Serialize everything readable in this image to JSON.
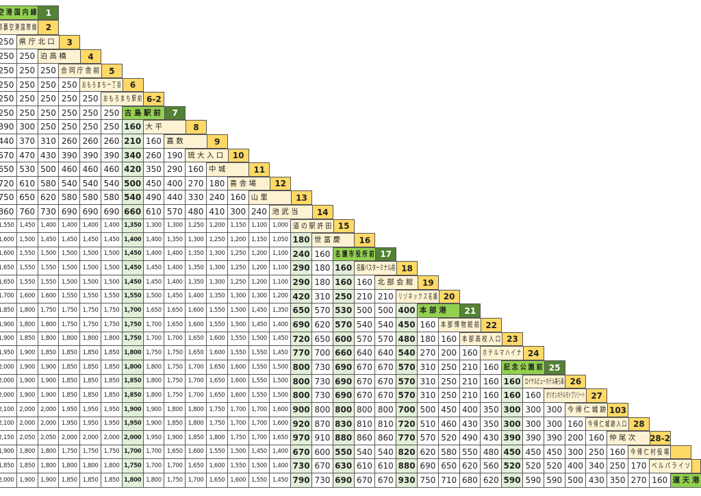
{
  "table_title": "",
  "stops": [
    {
      "name": "空 港 国 内 線",
      "no": "1",
      "type": "g"
    },
    {
      "name": "那 覇 空 港 国 際 線",
      "no": "2",
      "type": "y"
    },
    {
      "name": "県 庁 北 口",
      "no": "3",
      "type": "y"
    },
    {
      "name": "泊 高 橋",
      "no": "4",
      "type": "y"
    },
    {
      "name": "合 同 庁 舎 前",
      "no": "5",
      "type": "y"
    },
    {
      "name": "お も ろ ま ち 一 丁 目",
      "no": "6",
      "type": "y"
    },
    {
      "name": "お も ろ ま ち 駅 前",
      "no": "6-2",
      "type": "y"
    },
    {
      "name": "古 島 駅 前",
      "no": "7",
      "type": "g"
    },
    {
      "name": "大 平",
      "no": "8",
      "type": "y"
    },
    {
      "name": "嘉 数",
      "no": "9",
      "type": "y"
    },
    {
      "name": "琉 大 入 口",
      "no": "10",
      "type": "y"
    },
    {
      "name": "中 城",
      "no": "11",
      "type": "y"
    },
    {
      "name": "喜 舎 場",
      "no": "12",
      "type": "y"
    },
    {
      "name": "山 里",
      "no": "13",
      "type": "y"
    },
    {
      "name": "池 武 当",
      "no": "14",
      "type": "y"
    },
    {
      "name": "道 の 駅 許 田",
      "no": "15",
      "type": "y"
    },
    {
      "name": "世 冨 慶",
      "no": "16",
      "type": "y"
    },
    {
      "name": "名 護 市 役 所 前",
      "no": "17",
      "type": "g"
    },
    {
      "name": "名護バスターミナル前",
      "no": "18",
      "type": "y"
    },
    {
      "name": "北 部 会 館",
      "no": "19",
      "type": "y"
    },
    {
      "name": "リ ゾ ネ ッ ク ス 名 護",
      "no": "20",
      "type": "y"
    },
    {
      "name": "本 部 港",
      "no": "21",
      "type": "g"
    },
    {
      "name": "本 部 博 物 館 前",
      "no": "22",
      "type": "y"
    },
    {
      "name": "本 部 高 校 入 口",
      "no": "23",
      "type": "y"
    },
    {
      "name": "ホ テ ル マ ハ イ ナ",
      "no": "24",
      "type": "y"
    },
    {
      "name": "記 念 公 園 前",
      "no": "25",
      "type": "g"
    },
    {
      "name": "ロイヤルビューホテル美ら海",
      "no": "26",
      "type": "y"
    },
    {
      "name": "オリオンホテルモトブリゾート",
      "no": "27",
      "type": "y"
    },
    {
      "name": "今 帰 仁 城 跡",
      "no": "103",
      "type": "y"
    },
    {
      "name": "今 帰 仁 城 跡 入 口",
      "no": "28",
      "type": "y"
    },
    {
      "name": "仲 尾 次",
      "no": "28-2",
      "type": "y"
    },
    {
      "name": "今 帰 仁 村 役 場",
      "no": "",
      "type": "y"
    },
    {
      "name": "ベ ル パ ラ イ ソ",
      "no": "",
      "type": "y"
    },
    {
      "name": "運 天 港",
      "no": "",
      "type": "g"
    }
  ],
  "fares": [
    [],
    [],
    [
      "250"
    ],
    [
      "250",
      "250"
    ],
    [
      "250",
      "250",
      "250"
    ],
    [
      "250",
      "250",
      "250",
      "250"
    ],
    [
      "250",
      "250",
      "250",
      "250",
      "250"
    ],
    [
      "250",
      "250",
      "250",
      "250",
      "250",
      "250"
    ],
    [
      "390",
      "300",
      "250",
      "250",
      "250",
      "250",
      "160"
    ],
    [
      "440",
      "370",
      "310",
      "260",
      "260",
      "260",
      "210",
      "160"
    ],
    [
      "570",
      "470",
      "430",
      "390",
      "390",
      "390",
      "340",
      "260",
      "190"
    ],
    [
      "650",
      "530",
      "500",
      "460",
      "460",
      "460",
      "420",
      "350",
      "290",
      "160"
    ],
    [
      "720",
      "610",
      "580",
      "540",
      "540",
      "540",
      "500",
      "450",
      "400",
      "270",
      "180"
    ],
    [
      "750",
      "650",
      "620",
      "580",
      "580",
      "580",
      "540",
      "490",
      "440",
      "330",
      "240",
      "160"
    ],
    [
      "860",
      "760",
      "730",
      "690",
      "690",
      "690",
      "660",
      "610",
      "570",
      "480",
      "410",
      "300",
      "240"
    ],
    [
      "1,550",
      "1,450",
      "1,400",
      "1,400",
      "1,400",
      "1,400",
      "1,350",
      "1,300",
      "1,300",
      "1,250",
      "1,200",
      "1,150",
      "1,100",
      "1,000"
    ],
    [
      "1,600",
      "1,500",
      "1,450",
      "1,450",
      "1,450",
      "1,450",
      "1,400",
      "1,400",
      "1,350",
      "1,300",
      "1,250",
      "1,200",
      "1,150",
      "1,050",
      "180"
    ],
    [
      "1,600",
      "1,550",
      "1,500",
      "1,500",
      "1,500",
      "1,500",
      "1,450",
      "1,400",
      "1,400",
      "1,350",
      "1,300",
      "1,250",
      "1,200",
      "1,100",
      "240",
      "160"
    ],
    [
      "1,650",
      "1,550",
      "1,550",
      "1,500",
      "1,500",
      "1,500",
      "1,450",
      "1,450",
      "1,400",
      "1,350",
      "1,300",
      "1,250",
      "1,200",
      "1,100",
      "290",
      "180",
      "160"
    ],
    [
      "1,650",
      "1,550",
      "1,550",
      "1,500",
      "1,500",
      "1,500",
      "1,450",
      "1,450",
      "1,400",
      "1,350",
      "1,300",
      "1,250",
      "1,200",
      "1,100",
      "290",
      "180",
      "160",
      "160"
    ],
    [
      "1,700",
      "1,600",
      "1,600",
      "1,550",
      "1,550",
      "1,550",
      "1,550",
      "1,500",
      "1,450",
      "1,400",
      "1,350",
      "1,300",
      "1,300",
      "1,200",
      "420",
      "310",
      "250",
      "210",
      "210"
    ],
    [
      "1,850",
      "1,800",
      "1,750",
      "1,750",
      "1,750",
      "1,750",
      "1,700",
      "1,650",
      "1,650",
      "1,600",
      "1,550",
      "1,500",
      "1,450",
      "1,350",
      "650",
      "570",
      "530",
      "500",
      "500",
      "400"
    ],
    [
      "1,900",
      "1,800",
      "1,800",
      "1,750",
      "1,750",
      "1,750",
      "1,750",
      "1,700",
      "1,650",
      "1,600",
      "1,550",
      "1,500",
      "1,450",
      "1,400",
      "690",
      "620",
      "570",
      "540",
      "540",
      "450",
      "160"
    ],
    [
      "1,900",
      "1,850",
      "1,800",
      "1,800",
      "1,800",
      "1,800",
      "1,750",
      "1,700",
      "1,700",
      "1,650",
      "1,600",
      "1,550",
      "1,500",
      "1,450",
      "720",
      "650",
      "600",
      "570",
      "570",
      "480",
      "180",
      "160"
    ],
    [
      "1,950",
      "1,900",
      "1,850",
      "1,850",
      "1,850",
      "1,850",
      "1,800",
      "1,750",
      "1,750",
      "1,650",
      "1,600",
      "1,550",
      "1,550",
      "1,450",
      "770",
      "700",
      "660",
      "640",
      "640",
      "540",
      "270",
      "200",
      "160"
    ],
    [
      "2,000",
      "1,900",
      "1,900",
      "1,850",
      "1,850",
      "1,850",
      "1,800",
      "1,800",
      "1,750",
      "1,700",
      "1,650",
      "1,600",
      "1,550",
      "1,500",
      "800",
      "730",
      "690",
      "670",
      "670",
      "570",
      "310",
      "250",
      "210",
      "160"
    ],
    [
      "2,000",
      "1,900",
      "1,900",
      "1,850",
      "1,850",
      "1,850",
      "1,850",
      "1,800",
      "1,750",
      "1,700",
      "1,650",
      "1,600",
      "1,550",
      "1,500",
      "800",
      "730",
      "690",
      "670",
      "670",
      "570",
      "310",
      "250",
      "210",
      "160",
      "160"
    ],
    [
      "2,000",
      "1,900",
      "1,900",
      "1,850",
      "1,850",
      "1,850",
      "1,850",
      "1,800",
      "1,750",
      "1,700",
      "1,650",
      "1,600",
      "1,550",
      "1,500",
      "800",
      "730",
      "690",
      "670",
      "670",
      "570",
      "310",
      "250",
      "210",
      "160",
      "160",
      "160"
    ],
    [
      "2,100",
      "2,000",
      "2,000",
      "1,950",
      "1,950",
      "1,950",
      "1,900",
      "1,900",
      "1,800",
      "1,800",
      "1,750",
      "1,700",
      "1,700",
      "1,600",
      "900",
      "800",
      "800",
      "800",
      "800",
      "700",
      "500",
      "450",
      "400",
      "350",
      "300",
      "300",
      "300"
    ],
    [
      "2,100",
      "2,000",
      "2,000",
      "1,950",
      "1,950",
      "1,950",
      "1,950",
      "1,900",
      "1,850",
      "1,800",
      "1,750",
      "1,700",
      "1,700",
      "1,600",
      "920",
      "870",
      "830",
      "810",
      "810",
      "720",
      "510",
      "460",
      "430",
      "350",
      "300",
      "300",
      "300",
      "160"
    ],
    [
      "2,150",
      "2,050",
      "2,050",
      "2,000",
      "2,000",
      "2,000",
      "2,000",
      "1,950",
      "1,900",
      "1,850",
      "1,800",
      "1,750",
      "1,700",
      "1,650",
      "970",
      "910",
      "880",
      "860",
      "860",
      "770",
      "570",
      "520",
      "490",
      "430",
      "390",
      "390",
      "390",
      "200",
      "160"
    ],
    [
      "1,900",
      "1,800",
      "1,800",
      "1,750",
      "1,750",
      "1,750",
      "1,700",
      "1,700",
      "1,650",
      "1,600",
      "1,550",
      "1,500",
      "1,450",
      "1,400",
      "670",
      "600",
      "550",
      "540",
      "540",
      "820",
      "620",
      "580",
      "550",
      "480",
      "450",
      "450",
      "450",
      "300",
      "250",
      "160"
    ],
    [
      "1,850",
      "1,850",
      "1,800",
      "1,800",
      "1,800",
      "1,800",
      "1,750",
      "1,700",
      "1,700",
      "1,650",
      "1,600",
      "1,550",
      "1,500",
      "1,400",
      "730",
      "670",
      "630",
      "610",
      "610",
      "880",
      "690",
      "650",
      "620",
      "560",
      "520",
      "520",
      "520",
      "400",
      "340",
      "250",
      "170"
    ],
    [
      "2,000",
      "1,900",
      "1,900",
      "1,850",
      "1,850",
      "1,850",
      "1,800",
      "1,800",
      "1,750",
      "1,700",
      "1,650",
      "1,600",
      "1,550",
      "1,450",
      "790",
      "730",
      "690",
      "670",
      "670",
      "930",
      "750",
      "710",
      "680",
      "620",
      "590",
      "590",
      "590",
      "500",
      "430",
      "350",
      "270",
      "160"
    ]
  ]
}
